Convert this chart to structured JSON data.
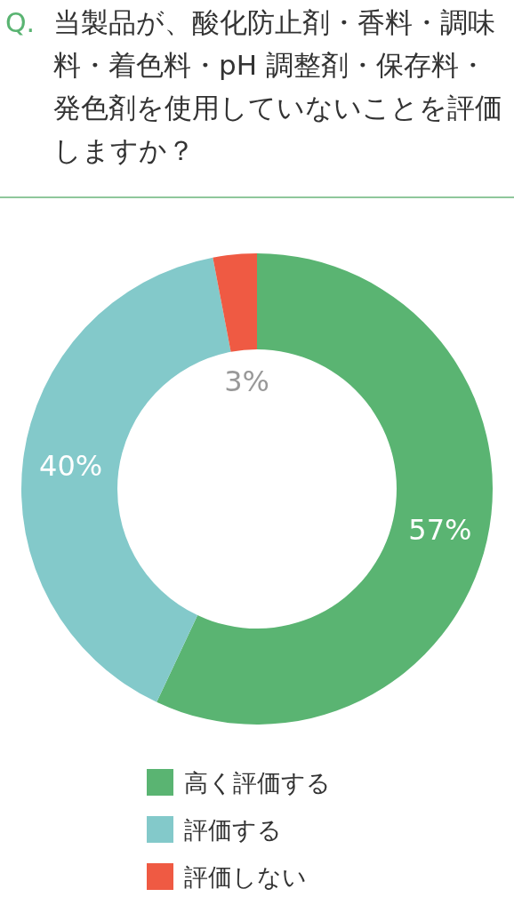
{
  "chart_data": {
    "type": "donut",
    "title": "Q. 当製品が、酸化防止剤・香料・調味料・着色料・pH 調整剤・保存料・発色剤を使用していないことを評価しますか？",
    "categories": [
      "高く評価する",
      "評価する",
      "評価しない"
    ],
    "values": [
      57,
      40,
      3
    ],
    "colors": [
      "#5ab472",
      "#83c9ca",
      "#ef5a43"
    ],
    "value_labels": [
      "57%",
      "40%",
      "3%"
    ],
    "legend": "bottom"
  }
}
